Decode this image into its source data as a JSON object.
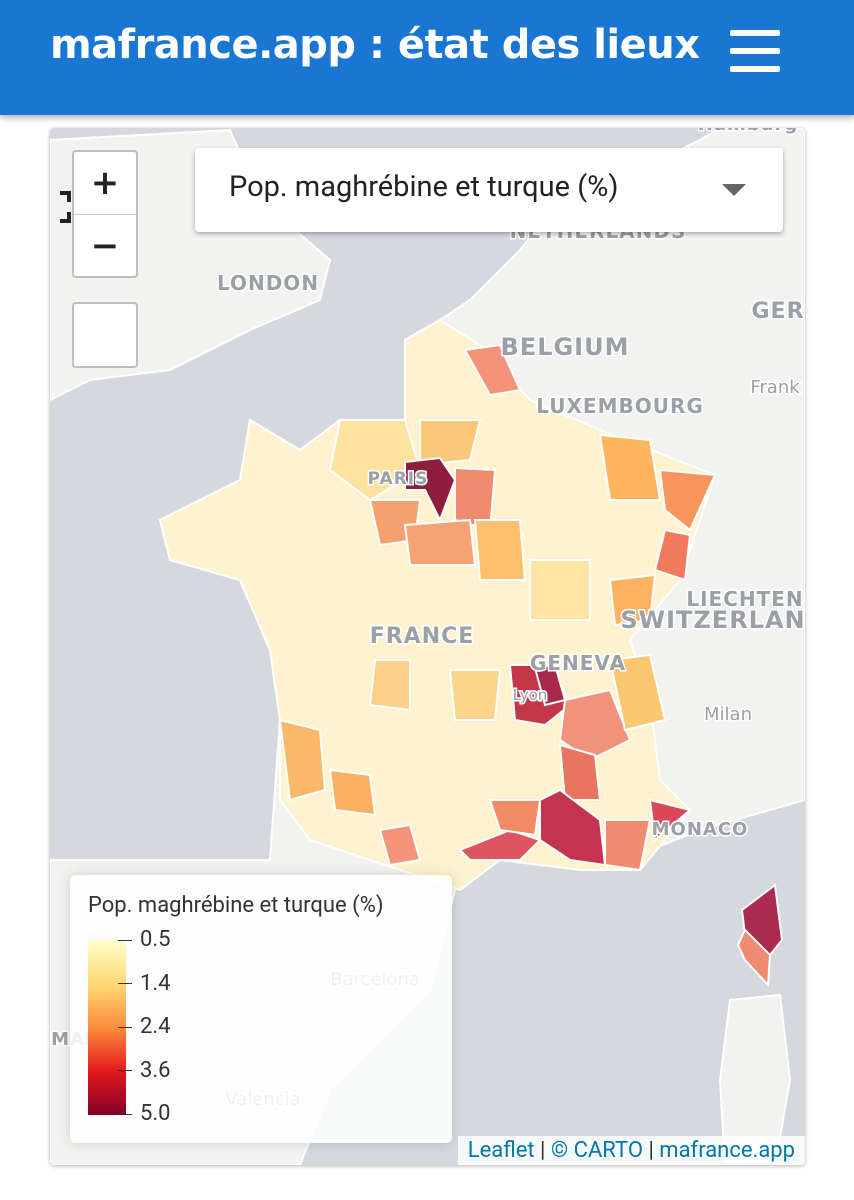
{
  "header": {
    "title": "mafrance.app : état des lieux"
  },
  "controls": {
    "zoom_in": "+",
    "zoom_out": "−"
  },
  "dropdown": {
    "selected": "Pop. maghrébine et turque (%)"
  },
  "map_labels": [
    "Hamburg",
    "NETHERLANDS",
    "LONDON",
    "GER",
    "BELGIUM",
    "Frank",
    "LUXEMBOURG",
    "PARIS",
    "FRANCE",
    "LIECHTEN",
    "SWITZERLAN",
    "GENEVA",
    "Lyon",
    "Milan",
    "MONACO",
    "Barcelona",
    "MA",
    "D",
    "Valencia"
  ],
  "legend": {
    "title": "Pop. maghrébine et turque (%)",
    "ticks": [
      "0.5",
      "1.4",
      "2.4",
      "3.6",
      "5.0"
    ]
  },
  "attribution": {
    "leaflet": "Leaflet",
    "sep1": "|",
    "carto": "© CARTO",
    "sep2": "|",
    "site": "mafrance.app"
  }
}
